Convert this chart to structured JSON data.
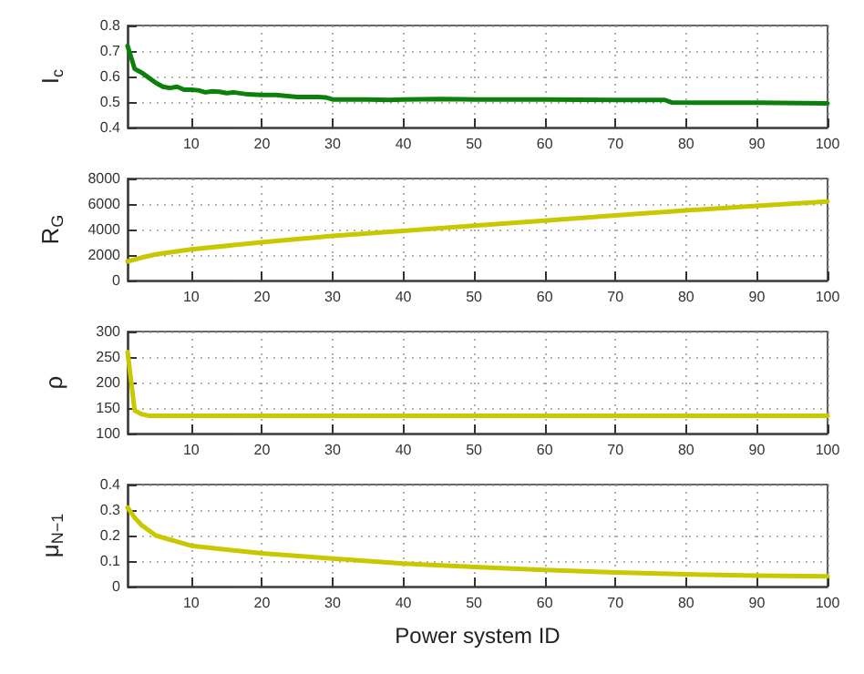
{
  "chart_data": [
    {
      "type": "line",
      "ylabel": "I$_{c}$",
      "xlim": [
        1,
        100
      ],
      "xticks": [
        10,
        20,
        30,
        40,
        50,
        60,
        70,
        80,
        90,
        100
      ],
      "ylim": [
        0.4,
        0.8
      ],
      "yticks": [
        0.4,
        0.5,
        0.6,
        0.7,
        0.8
      ],
      "grid": true,
      "marker": "none",
      "line_style": "solid",
      "series": [
        {
          "color": "#0b800b",
          "x": [
            1,
            2,
            3,
            4,
            5,
            6,
            7,
            8,
            9,
            10,
            11,
            12,
            13,
            14,
            15,
            16,
            18,
            20,
            22,
            25,
            28,
            29,
            30,
            35,
            38,
            40,
            45,
            50,
            60,
            70,
            77,
            78,
            85,
            90,
            100
          ],
          "values": [
            0.72,
            0.63,
            0.615,
            0.595,
            0.575,
            0.56,
            0.555,
            0.56,
            0.548,
            0.548,
            0.546,
            0.538,
            0.542,
            0.54,
            0.535,
            0.538,
            0.53,
            0.528,
            0.528,
            0.52,
            0.52,
            0.518,
            0.51,
            0.51,
            0.508,
            0.51,
            0.512,
            0.51,
            0.51,
            0.508,
            0.508,
            0.498,
            0.497,
            0.497,
            0.495
          ]
        }
      ]
    },
    {
      "type": "line",
      "ylabel": "R$_{G}$",
      "xlim": [
        1,
        100
      ],
      "xticks": [
        10,
        20,
        30,
        40,
        50,
        60,
        70,
        80,
        90,
        100
      ],
      "ylim": [
        0,
        8000
      ],
      "yticks": [
        0,
        2000,
        4000,
        6000,
        8000
      ],
      "grid": true,
      "marker": "none",
      "line_style": "solid",
      "series": [
        {
          "color": "#c8c800",
          "x": [
            1,
            3,
            5,
            10,
            20,
            30,
            40,
            50,
            60,
            70,
            80,
            90,
            100
          ],
          "values": [
            1500,
            1800,
            2050,
            2450,
            3000,
            3500,
            3900,
            4300,
            4700,
            5100,
            5500,
            5850,
            6200
          ]
        }
      ]
    },
    {
      "type": "line",
      "ylabel": "ρ",
      "xlim": [
        1,
        100
      ],
      "xticks": [
        10,
        20,
        30,
        40,
        50,
        60,
        70,
        80,
        90,
        100
      ],
      "ylim": [
        100,
        300
      ],
      "yticks": [
        100,
        150,
        200,
        250,
        300
      ],
      "grid": true,
      "marker": "none",
      "line_style": "solid",
      "series": [
        {
          "color": "#c8c800",
          "x": [
            1,
            2,
            3,
            4,
            10,
            50,
            100
          ],
          "values": [
            260,
            145,
            138,
            135,
            135,
            135,
            135
          ]
        }
      ]
    },
    {
      "type": "line",
      "xlabel": "Power system ID",
      "ylabel": "μ$_{N−1}$",
      "xlim": [
        1,
        100
      ],
      "xticks": [
        10,
        20,
        30,
        40,
        50,
        60,
        70,
        80,
        90,
        100
      ],
      "ylim": [
        0,
        0.4
      ],
      "yticks": [
        0,
        0.1,
        0.2,
        0.3,
        0.4
      ],
      "grid": true,
      "marker": "none",
      "line_style": "solid",
      "series": [
        {
          "color": "#c8c800",
          "x": [
            1,
            2,
            3,
            5,
            10,
            20,
            30,
            40,
            50,
            60,
            70,
            80,
            90,
            100
          ],
          "values": [
            0.31,
            0.27,
            0.24,
            0.2,
            0.16,
            0.13,
            0.11,
            0.09,
            0.077,
            0.065,
            0.055,
            0.048,
            0.043,
            0.04
          ]
        }
      ]
    }
  ]
}
